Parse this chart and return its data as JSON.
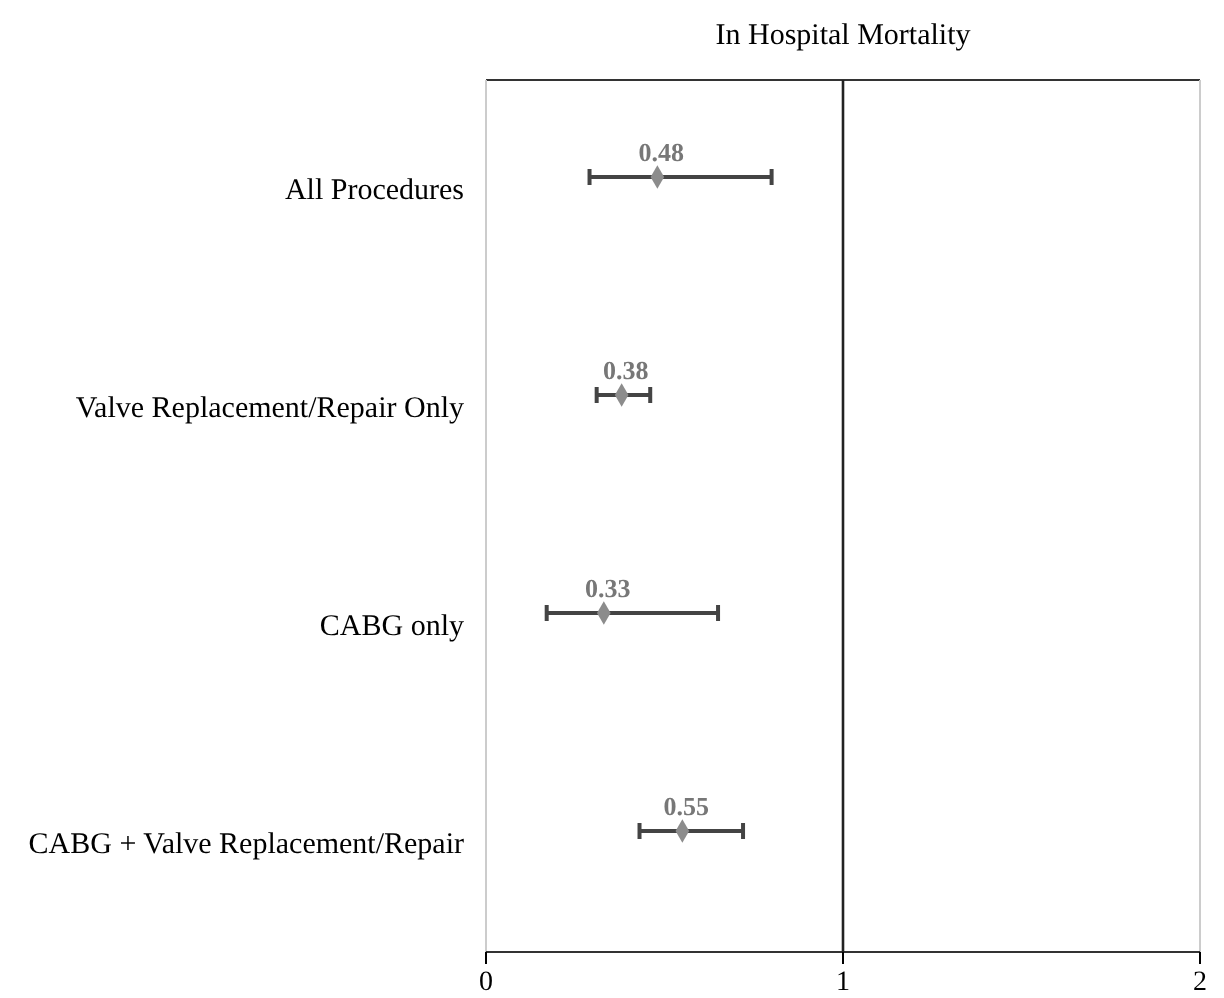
{
  "chart_data": {
    "type": "scatter",
    "orientation": "horizontal",
    "title": "In Hospital Mortality",
    "categories": [
      "All Procedures",
      "Valve Replacement/Repair Only",
      "CABG only",
      "CABG + Valve Replacement/Repair"
    ],
    "values": [
      0.48,
      0.38,
      0.33,
      0.55
    ],
    "errors": [
      [
        0.29,
        0.8
      ],
      [
        0.31,
        0.46
      ],
      [
        0.17,
        0.65
      ],
      [
        0.43,
        0.72
      ]
    ],
    "color": "#8c8c8c",
    "marker": "diamond",
    "data_labels": true,
    "xlim": [
      0,
      2
    ],
    "xticks": [
      0,
      1,
      2
    ],
    "ref_lines": [
      {
        "axis": "x",
        "value": 1
      }
    ],
    "grid": false
  }
}
